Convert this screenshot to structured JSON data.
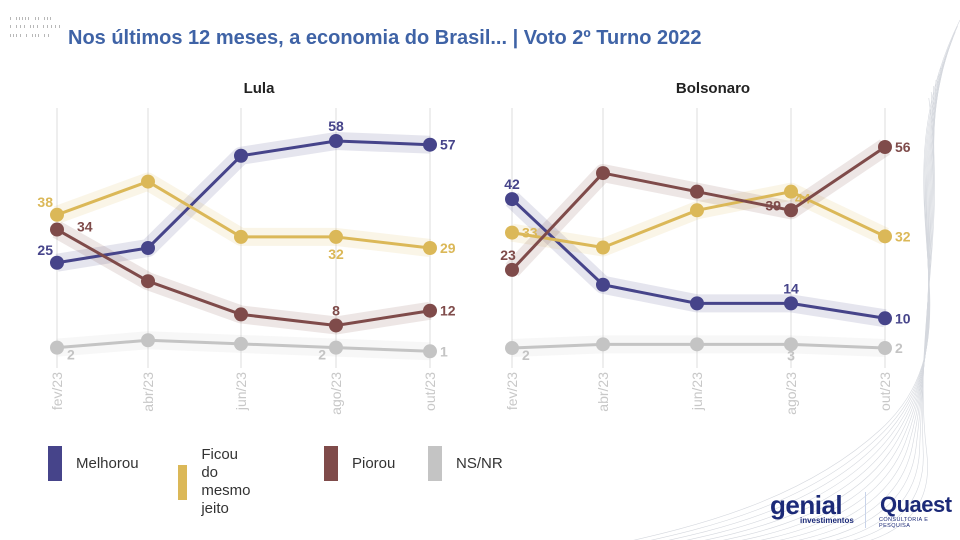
{
  "header": {
    "title": "Nos últimos 12 meses, a economia do Brasil... | Voto 2º Turno 2022"
  },
  "colors": {
    "Melhorou": "#46448a",
    "Ficou do mesmo jeito": "#dbb858",
    "Piorou": "#7f4b4a",
    "NS/NR": "#c4c4c4",
    "title": "#3f63a6"
  },
  "chart_data": [
    {
      "type": "line",
      "title": "Lula",
      "categories": [
        "fev/23",
        "abr/23",
        "jun/23",
        "ago/23",
        "out/23"
      ],
      "xlabel": "",
      "ylabel": "",
      "ylim": [
        0,
        58
      ],
      "grid": "vertical",
      "series": [
        {
          "name": "Melhorou",
          "values": [
            25,
            29,
            54,
            58,
            57
          ],
          "labels": {
            "0": "25",
            "3": "58",
            "4": "57"
          }
        },
        {
          "name": "Ficou do mesmo jeito",
          "values": [
            38,
            47,
            32,
            32,
            29
          ],
          "labels": {
            "0": "38",
            "3": "32",
            "4": "29"
          }
        },
        {
          "name": "Piorou",
          "values": [
            34,
            20,
            11,
            8,
            12
          ],
          "labels": {
            "0": "34",
            "3": "8",
            "4": "12"
          }
        },
        {
          "name": "NS/NR",
          "values": [
            2,
            4,
            3,
            2,
            1
          ],
          "labels": {
            "0": "2",
            "3": "2",
            "4": "1"
          }
        }
      ]
    },
    {
      "type": "line",
      "title": "Bolsonaro",
      "categories": [
        "fev/23",
        "abr/23",
        "jun/23",
        "ago/23",
        "out/23"
      ],
      "xlabel": "",
      "ylabel": "",
      "ylim": [
        0,
        56
      ],
      "grid": "vertical",
      "series": [
        {
          "name": "Melhorou",
          "values": [
            42,
            19,
            14,
            14,
            10
          ],
          "labels": {
            "0": "42",
            "3": "14",
            "4": "10"
          }
        },
        {
          "name": "Ficou do mesmo jeito",
          "values": [
            33,
            29,
            39,
            44,
            32
          ],
          "labels": {
            "0": "33",
            "3": "44",
            "4": "32"
          }
        },
        {
          "name": "Piorou",
          "values": [
            23,
            49,
            44,
            39,
            56
          ],
          "labels": {
            "0": "23",
            "3": "39",
            "4": "56"
          }
        },
        {
          "name": "NS/NR",
          "values": [
            2,
            3,
            3,
            3,
            2
          ],
          "labels": {
            "0": "2",
            "3": "3",
            "4": "2"
          }
        }
      ]
    }
  ],
  "legend": {
    "position": "bottom-left",
    "items": [
      {
        "label": "Melhorou"
      },
      {
        "label": "Ficou do\nmesmo jeito"
      },
      {
        "label": "Piorou"
      },
      {
        "label": "NS/NR"
      }
    ]
  },
  "logos": {
    "genial": "genial",
    "genial_sub": "investimentos",
    "quaest": "Quaest",
    "quaest_sub": "CONSULTORIA E PESQUISA"
  }
}
